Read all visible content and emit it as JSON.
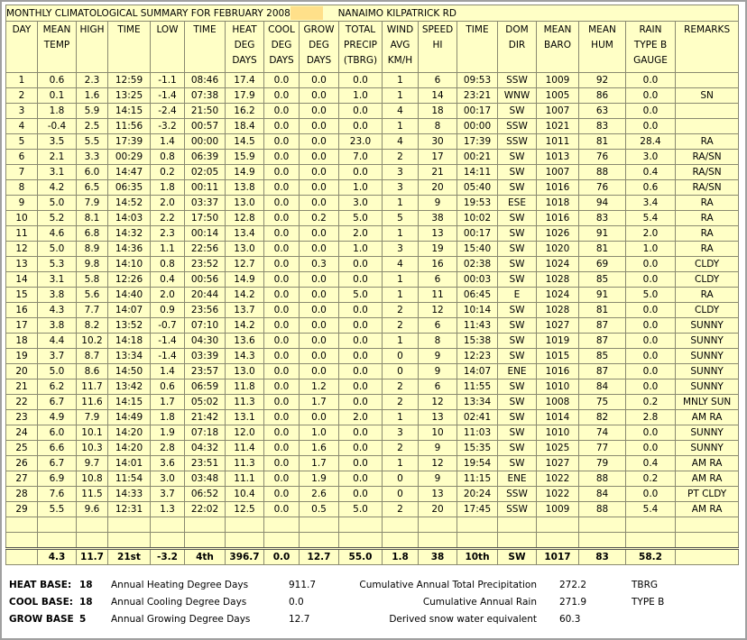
{
  "header": {
    "title": "MONTHLY CLIMATOLOGICAL SUMMARY FOR FEBRUARY 2008",
    "station": "NANAIMO KILPATRICK RD"
  },
  "table": {
    "columns": [
      [
        "DAY"
      ],
      [
        "MEAN",
        "TEMP"
      ],
      [
        "HIGH"
      ],
      [
        "TIME"
      ],
      [
        "LOW"
      ],
      [
        "TIME"
      ],
      [
        "HEAT",
        "DEG",
        "DAYS"
      ],
      [
        "COOL",
        "DEG",
        "DAYS"
      ],
      [
        "GROW",
        "DEG",
        "DAYS"
      ],
      [
        "TOTAL",
        "PRECIP",
        "(TBRG)"
      ],
      [
        "WIND",
        "AVG",
        "KM/H"
      ],
      [
        "SPEED",
        "HI"
      ],
      [
        "TIME"
      ],
      [
        "DOM",
        "DIR"
      ],
      [
        "MEAN",
        "BARO"
      ],
      [
        "MEAN",
        "HUM"
      ],
      [
        "RAIN",
        "TYPE B",
        "GAUGE"
      ],
      [
        "REMARKS"
      ]
    ],
    "rows": [
      [
        "1",
        "0.6",
        "2.3",
        "12:59",
        "-1.1",
        "08:46",
        "17.4",
        "0.0",
        "0.0",
        "0.0",
        "1",
        "6",
        "09:53",
        "SSW",
        "1009",
        "92",
        "0.0"
      ],
      [
        "2",
        "0.1",
        "1.6",
        "13:25",
        "-1.4",
        "07:38",
        "17.9",
        "0.0",
        "0.0",
        "1.0",
        "1",
        "14",
        "23:21",
        "WNW",
        "1005",
        "86",
        "0.0",
        "SN"
      ],
      [
        "3",
        "1.8",
        "5.9",
        "14:15",
        "-2.4",
        "21:50",
        "16.2",
        "0.0",
        "0.0",
        "0.0",
        "4",
        "18",
        "00:17",
        "SW",
        "1007",
        "63",
        "0.0"
      ],
      [
        "4",
        "-0.4",
        "2.5",
        "11:56",
        "-3.2",
        "00:57",
        "18.4",
        "0.0",
        "0.0",
        "0.0",
        "1",
        "8",
        "00:00",
        "SSW",
        "1021",
        "83",
        "0.0"
      ],
      [
        "5",
        "3.5",
        "5.5",
        "17:39",
        "1.4",
        "00:00",
        "14.5",
        "0.0",
        "0.0",
        "23.0",
        "4",
        "30",
        "17:39",
        "SSW",
        "1011",
        "81",
        "28.4",
        "RA"
      ],
      [
        "6",
        "2.1",
        "3.3",
        "00:29",
        "0.8",
        "06:39",
        "15.9",
        "0.0",
        "0.0",
        "7.0",
        "2",
        "17",
        "00:21",
        "SW",
        "1013",
        "76",
        "3.0",
        "RA/SN"
      ],
      [
        "7",
        "3.1",
        "6.0",
        "14:47",
        "0.2",
        "02:05",
        "14.9",
        "0.0",
        "0.0",
        "0.0",
        "3",
        "21",
        "14:11",
        "SW",
        "1007",
        "88",
        "0.4",
        "RA/SN"
      ],
      [
        "8",
        "4.2",
        "6.5",
        "06:35",
        "1.8",
        "00:11",
        "13.8",
        "0.0",
        "0.0",
        "1.0",
        "3",
        "20",
        "05:40",
        "SW",
        "1016",
        "76",
        "0.6",
        "RA/SN"
      ],
      [
        "9",
        "5.0",
        "7.9",
        "14:52",
        "2.0",
        "03:37",
        "13.0",
        "0.0",
        "0.0",
        "3.0",
        "1",
        "9",
        "19:53",
        "ESE",
        "1018",
        "94",
        "3.4",
        "RA"
      ],
      [
        "10",
        "5.2",
        "8.1",
        "14:03",
        "2.2",
        "17:50",
        "12.8",
        "0.0",
        "0.2",
        "5.0",
        "5",
        "38",
        "10:02",
        "SW",
        "1016",
        "83",
        "5.4",
        "RA"
      ],
      [
        "11",
        "4.6",
        "6.8",
        "14:32",
        "2.3",
        "00:14",
        "13.4",
        "0.0",
        "0.0",
        "2.0",
        "1",
        "13",
        "00:17",
        "SW",
        "1026",
        "91",
        "2.0",
        "RA"
      ],
      [
        "12",
        "5.0",
        "8.9",
        "14:36",
        "1.1",
        "22:56",
        "13.0",
        "0.0",
        "0.0",
        "1.0",
        "3",
        "19",
        "15:40",
        "SW",
        "1020",
        "81",
        "1.0",
        "RA"
      ],
      [
        "13",
        "5.3",
        "9.8",
        "14:10",
        "0.8",
        "23:52",
        "12.7",
        "0.0",
        "0.3",
        "0.0",
        "4",
        "16",
        "02:38",
        "SW",
        "1024",
        "69",
        "0.0",
        "CLDY"
      ],
      [
        "14",
        "3.1",
        "5.8",
        "12:26",
        "0.4",
        "00:56",
        "14.9",
        "0.0",
        "0.0",
        "0.0",
        "1",
        "6",
        "00:03",
        "SW",
        "1028",
        "85",
        "0.0",
        "CLDY"
      ],
      [
        "15",
        "3.8",
        "5.6",
        "14:40",
        "2.0",
        "20:44",
        "14.2",
        "0.0",
        "0.0",
        "5.0",
        "1",
        "11",
        "06:45",
        "E",
        "1024",
        "91",
        "5.0",
        "RA"
      ],
      [
        "16",
        "4.3",
        "7.7",
        "14:07",
        "0.9",
        "23:56",
        "13.7",
        "0.0",
        "0.0",
        "0.0",
        "2",
        "12",
        "10:14",
        "SW",
        "1028",
        "81",
        "0.0",
        "CLDY"
      ],
      [
        "17",
        "3.8",
        "8.2",
        "13:52",
        "-0.7",
        "07:10",
        "14.2",
        "0.0",
        "0.0",
        "0.0",
        "2",
        "6",
        "11:43",
        "SW",
        "1027",
        "87",
        "0.0",
        "SUNNY"
      ],
      [
        "18",
        "4.4",
        "10.2",
        "14:18",
        "-1.4",
        "04:30",
        "13.6",
        "0.0",
        "0.0",
        "0.0",
        "1",
        "8",
        "15:38",
        "SW",
        "1019",
        "87",
        "0.0",
        "SUNNY"
      ],
      [
        "19",
        "3.7",
        "8.7",
        "13:34",
        "-1.4",
        "03:39",
        "14.3",
        "0.0",
        "0.0",
        "0.0",
        "0",
        "9",
        "12:23",
        "SW",
        "1015",
        "85",
        "0.0",
        "SUNNY"
      ],
      [
        "20",
        "5.0",
        "8.6",
        "14:50",
        "1.4",
        "23:57",
        "13.0",
        "0.0",
        "0.0",
        "0.0",
        "0",
        "9",
        "14:07",
        "ENE",
        "1016",
        "87",
        "0.0",
        "SUNNY"
      ],
      [
        "21",
        "6.2",
        "11.7",
        "13:42",
        "0.6",
        "06:59",
        "11.8",
        "0.0",
        "1.2",
        "0.0",
        "2",
        "6",
        "11:55",
        "SW",
        "1010",
        "84",
        "0.0",
        "SUNNY"
      ],
      [
        "22",
        "6.7",
        "11.6",
        "14:15",
        "1.7",
        "05:02",
        "11.3",
        "0.0",
        "1.7",
        "0.0",
        "2",
        "12",
        "13:34",
        "SW",
        "1008",
        "75",
        "0.2",
        "MNLY SUN"
      ],
      [
        "23",
        "4.9",
        "7.9",
        "14:49",
        "1.8",
        "21:42",
        "13.1",
        "0.0",
        "0.0",
        "2.0",
        "1",
        "13",
        "02:41",
        "SW",
        "1014",
        "82",
        "2.8",
        "AM RA"
      ],
      [
        "24",
        "6.0",
        "10.1",
        "14:20",
        "1.9",
        "07:18",
        "12.0",
        "0.0",
        "1.0",
        "0.0",
        "3",
        "10",
        "11:03",
        "SW",
        "1010",
        "74",
        "0.0",
        "SUNNY"
      ],
      [
        "25",
        "6.6",
        "10.3",
        "14:20",
        "2.8",
        "04:32",
        "11.4",
        "0.0",
        "1.6",
        "0.0",
        "2",
        "9",
        "15:35",
        "SW",
        "1025",
        "77",
        "0.0",
        "SUNNY"
      ],
      [
        "26",
        "6.7",
        "9.7",
        "14:01",
        "3.6",
        "23:51",
        "11.3",
        "0.0",
        "1.7",
        "0.0",
        "1",
        "12",
        "19:54",
        "SW",
        "1027",
        "79",
        "0.4",
        "AM RA"
      ],
      [
        "27",
        "6.9",
        "10.8",
        "11:54",
        "3.0",
        "03:48",
        "11.1",
        "0.0",
        "1.9",
        "0.0",
        "0",
        "9",
        "11:15",
        "ENE",
        "1022",
        "88",
        "0.2",
        "AM RA"
      ],
      [
        "28",
        "7.6",
        "11.5",
        "14:33",
        "3.7",
        "06:52",
        "10.4",
        "0.0",
        "2.6",
        "0.0",
        "0",
        "13",
        "20:24",
        "SSW",
        "1022",
        "84",
        "0.0",
        "PT CLDY"
      ],
      [
        "29",
        "5.5",
        "9.6",
        "12:31",
        "1.3",
        "22:02",
        "12.5",
        "0.0",
        "0.5",
        "5.0",
        "2",
        "20",
        "17:45",
        "SSW",
        "1009",
        "88",
        "5.4",
        "AM RA"
      ]
    ],
    "totals": [
      "4.3",
      "11.7",
      "21st",
      "-3.2",
      "4th",
      "396.7",
      "0.0",
      "12.7",
      "55.0",
      "1.8",
      "38",
      "10th",
      "SW",
      "1017",
      "83",
      "58.2"
    ]
  },
  "footer": {
    "lines": [
      [
        "HEAT BASE:",
        "18",
        "Annual Heating Degree Days",
        "911.7",
        "Cumulative Annual Total Precipitation",
        "272.2",
        "TBRG"
      ],
      [
        "COOL BASE:",
        "18",
        "Annual Cooling Degree Days",
        "0.0",
        "Cumulative Annual Rain",
        "271.9",
        "TYPE B"
      ],
      [
        "GROW BASE",
        "5",
        "Annual Growing Degree Days",
        "12.7",
        "Derived snow water equivalent",
        "60.3"
      ]
    ]
  }
}
